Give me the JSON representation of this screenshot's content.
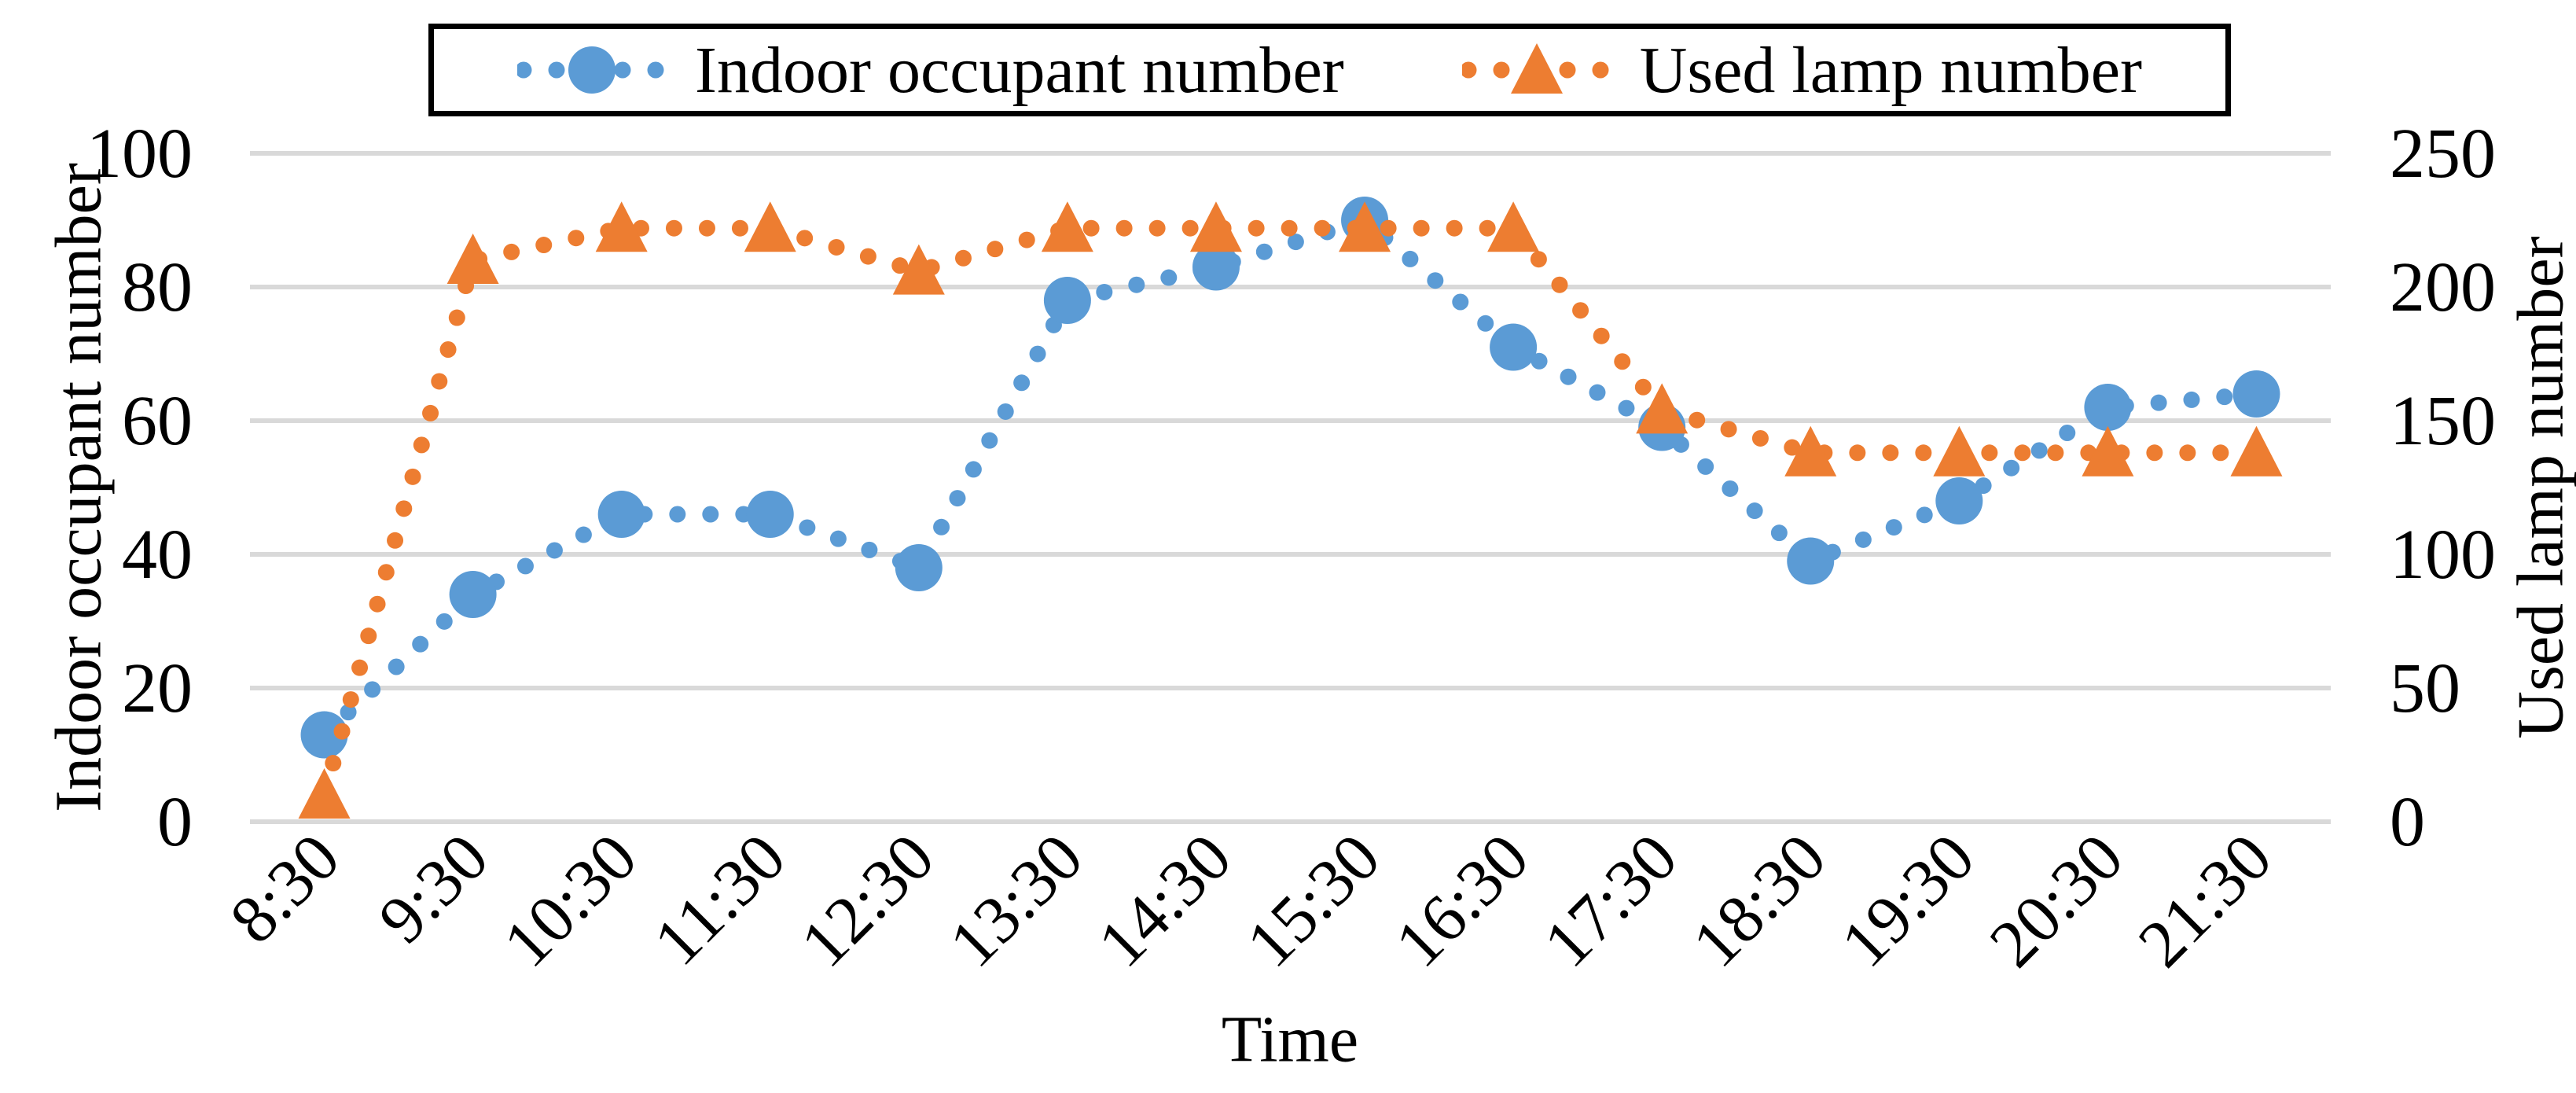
{
  "chart_data": {
    "type": "line",
    "title": "",
    "x_categories": [
      "8:30",
      "9:30",
      "10:30",
      "11:30",
      "12:30",
      "13:30",
      "14:30",
      "15:30",
      "16:30",
      "17:30",
      "18:30",
      "19:30",
      "20:30",
      "21:30"
    ],
    "xlabel": "Time",
    "grid": true,
    "legend_position": "top",
    "gridline_color": "#D9D9D9",
    "text_color": "#000000",
    "legend_border_color": "#000000",
    "left_axis": {
      "label": "Indoor occupant number",
      "ticks": [
        0,
        20,
        40,
        60,
        80,
        100
      ],
      "range": [
        0,
        100
      ]
    },
    "right_axis": {
      "label": "Used lamp number",
      "ticks": [
        0,
        50,
        100,
        150,
        200,
        250
      ],
      "range": [
        0,
        250
      ]
    },
    "series": [
      {
        "name": "Indoor occupant number",
        "axis": "left",
        "marker": "circle",
        "line_style": "dotted",
        "color": "#5B9BD5",
        "values": [
          13,
          34,
          46,
          46,
          38,
          78,
          83,
          90,
          71,
          59,
          39,
          48,
          62,
          64
        ]
      },
      {
        "name": "Used lamp number",
        "axis": "right",
        "marker": "triangle",
        "line_style": "dotted",
        "color": "#ED7D31",
        "values": [
          10,
          210,
          222,
          222,
          206,
          222,
          222,
          222,
          222,
          154,
          138,
          138,
          138,
          138
        ]
      }
    ]
  }
}
